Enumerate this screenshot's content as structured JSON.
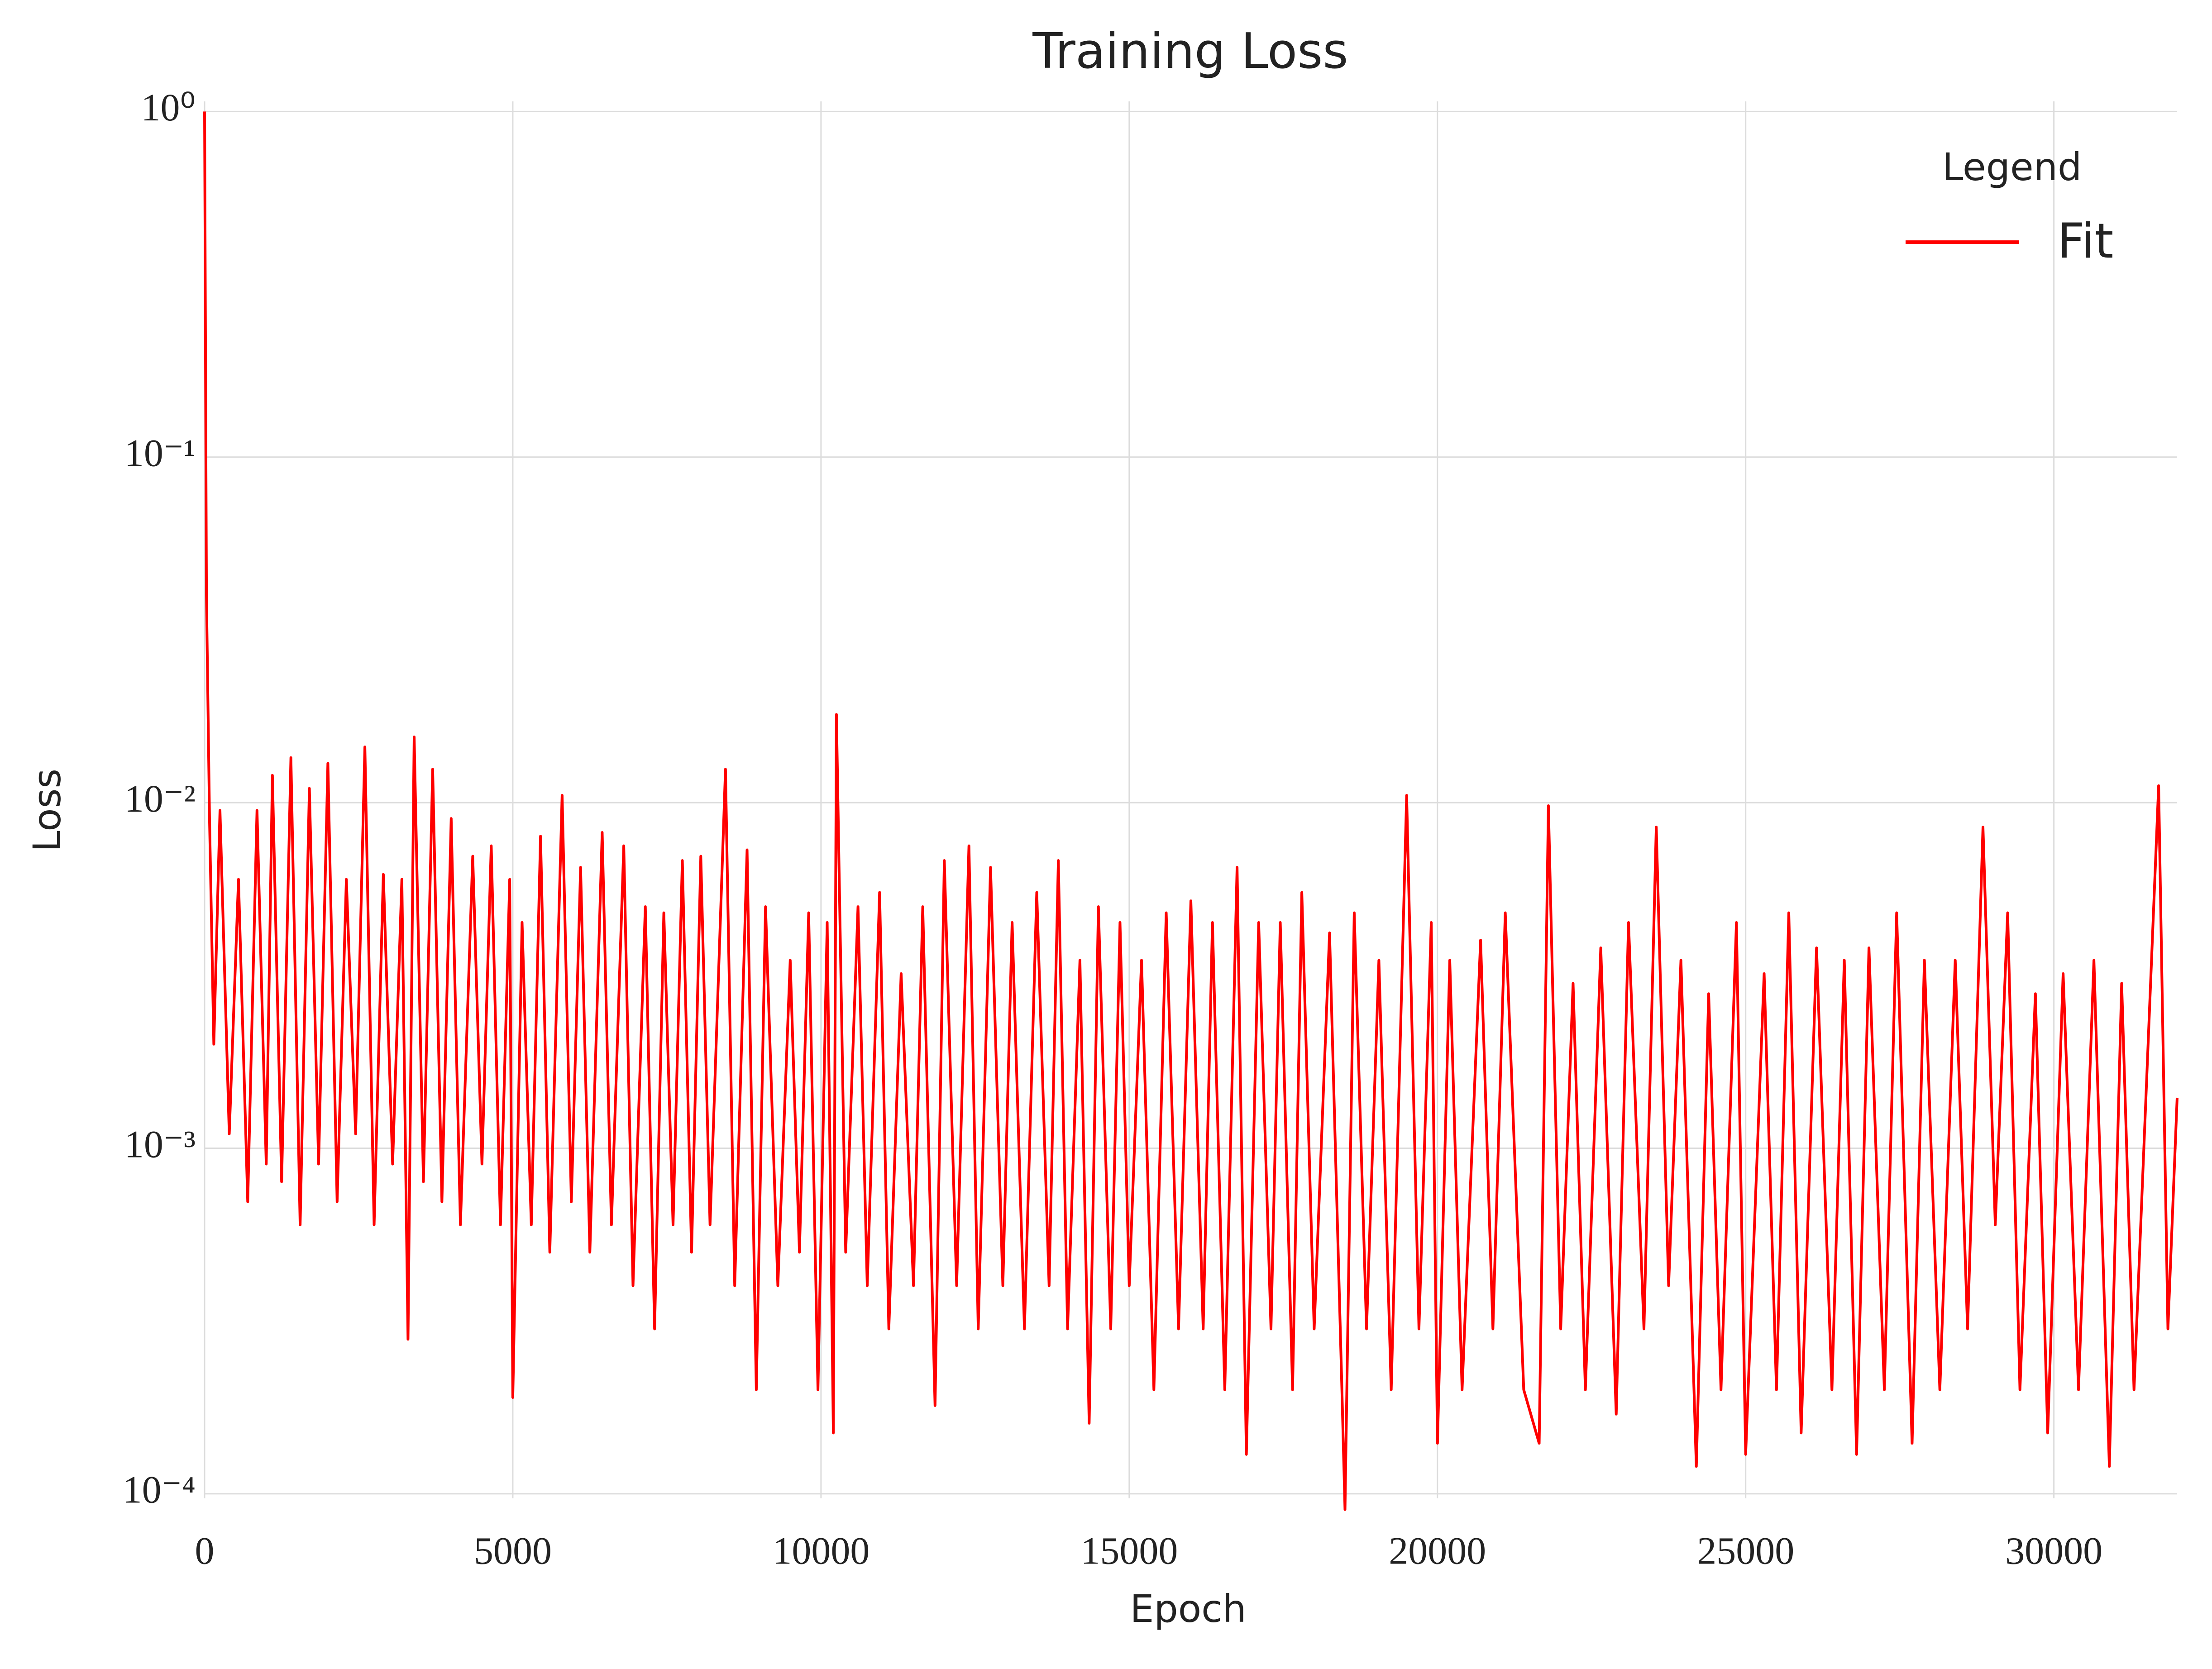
{
  "chart_data": {
    "type": "line",
    "title": "Training Loss",
    "x_label": "Epoch",
    "y_label": "Loss",
    "legend_title": "Legend",
    "legend_position": "upper right",
    "grid": true,
    "y_scale": "log",
    "xlim": [
      0,
      32000
    ],
    "ylim": [
      9.7e-05,
      1.07
    ],
    "xticks": [
      0,
      5000,
      10000,
      15000,
      20000,
      25000,
      30000
    ],
    "yticks": [
      {
        "value": 1,
        "label": "10⁰"
      },
      {
        "value": 0.1,
        "label": "10⁻¹"
      },
      {
        "value": 0.01,
        "label": "10⁻²"
      },
      {
        "value": 0.001,
        "label": "10⁻³"
      },
      {
        "value": 0.0001,
        "label": "10⁻⁴"
      }
    ],
    "x": [
      0,
      30,
      80,
      150,
      250,
      400,
      550,
      700,
      850,
      1000,
      1100,
      1250,
      1400,
      1550,
      1700,
      1850,
      2000,
      2150,
      2300,
      2450,
      2600,
      2750,
      2900,
      3050,
      3200,
      3300,
      3400,
      3550,
      3700,
      3850,
      4000,
      4150,
      4350,
      4500,
      4650,
      4800,
      4950,
      5000,
      5150,
      5300,
      5450,
      5600,
      5800,
      5950,
      6100,
      6250,
      6450,
      6600,
      6800,
      6950,
      7150,
      7300,
      7450,
      7600,
      7750,
      7900,
      8050,
      8200,
      8450,
      8600,
      8800,
      8950,
      9100,
      9300,
      9500,
      9650,
      9800,
      9950,
      10100,
      10200,
      10250,
      10400,
      10600,
      10750,
      10950,
      11100,
      11300,
      11500,
      11650,
      11850,
      12000,
      12200,
      12400,
      12550,
      12750,
      12950,
      13100,
      13300,
      13500,
      13700,
      13850,
      14000,
      14200,
      14350,
      14500,
      14700,
      14850,
      15000,
      15200,
      15400,
      15600,
      15800,
      16000,
      16200,
      16350,
      16550,
      16750,
      16900,
      17100,
      17300,
      17450,
      17650,
      17800,
      18000,
      18250,
      18450,
      18500,
      18650,
      18850,
      19050,
      19250,
      19500,
      19700,
      19900,
      20000,
      20200,
      20400,
      20700,
      20900,
      21100,
      21400,
      21650,
      21800,
      22000,
      22200,
      22400,
      22650,
      22900,
      23100,
      23350,
      23550,
      23750,
      23950,
      24200,
      24400,
      24600,
      24850,
      25000,
      25300,
      25500,
      25700,
      25900,
      26150,
      26400,
      26600,
      26800,
      27000,
      27250,
      27450,
      27700,
      27900,
      28150,
      28400,
      28600,
      28850,
      29050,
      29250,
      29450,
      29700,
      29900,
      30150,
      30400,
      30650,
      30900,
      31100,
      31300,
      31700,
      31850,
      32000
    ],
    "series": [
      {
        "name": "Fit",
        "color": "#ff0000",
        "values": [
          1.0,
          0.04,
          0.009,
          0.002,
          0.0095,
          0.0011,
          0.006,
          0.0007,
          0.0095,
          0.0009,
          0.012,
          0.0008,
          0.0135,
          0.0006,
          0.011,
          0.0009,
          0.013,
          0.0007,
          0.006,
          0.0011,
          0.0145,
          0.0006,
          0.0062,
          0.0009,
          0.006,
          0.00028,
          0.0155,
          0.0008,
          0.0125,
          0.0007,
          0.009,
          0.0006,
          0.007,
          0.0009,
          0.0075,
          0.0006,
          0.006,
          0.00019,
          0.0045,
          0.0006,
          0.008,
          0.0005,
          0.0105,
          0.0007,
          0.0065,
          0.0005,
          0.0082,
          0.0006,
          0.0075,
          0.0004,
          0.005,
          0.0003,
          0.0048,
          0.0006,
          0.0068,
          0.0005,
          0.007,
          0.0006,
          0.0125,
          0.0004,
          0.0073,
          0.0002,
          0.005,
          0.0004,
          0.0035,
          0.0005,
          0.0048,
          0.0002,
          0.0045,
          0.00015,
          0.018,
          0.0005,
          0.005,
          0.0004,
          0.0055,
          0.0003,
          0.0032,
          0.0004,
          0.005,
          0.00018,
          0.0068,
          0.0004,
          0.0075,
          0.0003,
          0.0065,
          0.0004,
          0.0045,
          0.0003,
          0.0055,
          0.0004,
          0.0068,
          0.0003,
          0.0035,
          0.00016,
          0.005,
          0.0003,
          0.0045,
          0.0004,
          0.0035,
          0.0002,
          0.0048,
          0.0003,
          0.0052,
          0.0003,
          0.0045,
          0.0002,
          0.0065,
          0.00013,
          0.0045,
          0.0003,
          0.0045,
          0.0002,
          0.0055,
          0.0003,
          0.0042,
          0.0002,
          9e-05,
          0.0048,
          0.0003,
          0.0035,
          0.0002,
          0.0105,
          0.0003,
          0.0045,
          0.00014,
          0.0035,
          0.0002,
          0.004,
          0.0003,
          0.0048,
          0.0002,
          0.00014,
          0.0098,
          0.0003,
          0.003,
          0.0002,
          0.0038,
          0.00017,
          0.0045,
          0.0003,
          0.0085,
          0.0004,
          0.0035,
          0.00012,
          0.0028,
          0.0002,
          0.0045,
          0.00013,
          0.0032,
          0.0002,
          0.0048,
          0.00015,
          0.0038,
          0.0002,
          0.0035,
          0.00013,
          0.0038,
          0.0002,
          0.0048,
          0.00014,
          0.0035,
          0.0002,
          0.0035,
          0.0003,
          0.0085,
          0.0006,
          0.0048,
          0.0002,
          0.0028,
          0.00015,
          0.0032,
          0.0002,
          0.0035,
          0.00012,
          0.003,
          0.0002,
          0.0112,
          0.0003,
          0.0014
        ]
      }
    ]
  }
}
